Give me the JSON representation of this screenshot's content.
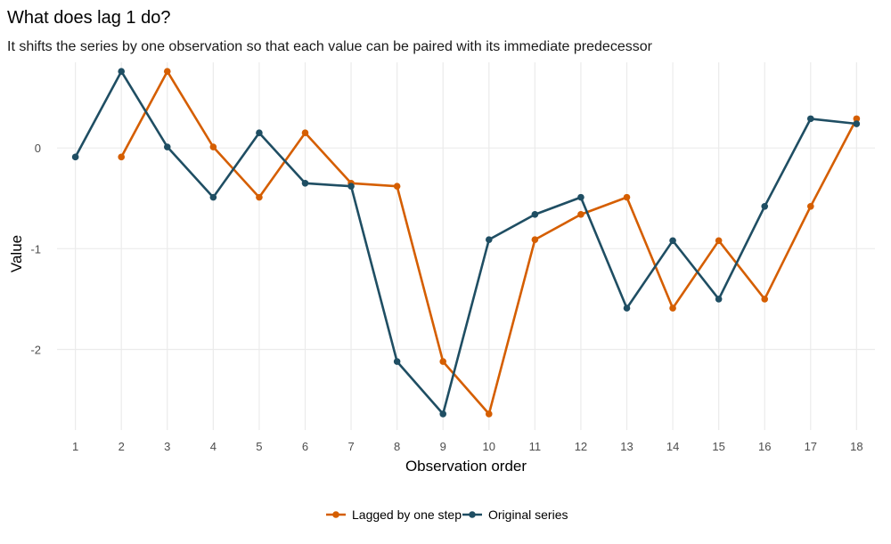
{
  "chart_data": {
    "type": "line",
    "title": "What does lag 1 do?",
    "subtitle": "It shifts the series by one observation so that each value can be paired with its immediate predecessor",
    "xlabel": "Observation order",
    "ylabel": "Value",
    "x": [
      1,
      2,
      3,
      4,
      5,
      6,
      7,
      8,
      9,
      10,
      11,
      12,
      13,
      14,
      15,
      16,
      17,
      18
    ],
    "x_ticks": [
      "1",
      "2",
      "3",
      "4",
      "5",
      "6",
      "7",
      "8",
      "9",
      "10",
      "11",
      "12",
      "13",
      "14",
      "15",
      "16",
      "17",
      "18"
    ],
    "y_ticks": [
      {
        "value": 0,
        "label": "0"
      },
      {
        "value": -1,
        "label": "-1"
      },
      {
        "value": -2,
        "label": "-2"
      }
    ],
    "ylim": [
      -2.8,
      0.85
    ],
    "xlim": [
      0.6,
      18.4
    ],
    "grid": true,
    "legend_position": "bottom",
    "series": [
      {
        "name": "Lagged by one step",
        "color": "#D55E00",
        "values": [
          null,
          -0.09,
          0.76,
          0.01,
          -0.49,
          0.15,
          -0.35,
          -0.38,
          -2.12,
          -2.64,
          -0.91,
          -0.66,
          -0.49,
          -1.59,
          -0.92,
          -1.5,
          -0.58,
          0.29
        ]
      },
      {
        "name": "Original series",
        "color": "#1F4E63",
        "values": [
          -0.09,
          0.76,
          0.01,
          -0.49,
          0.15,
          -0.35,
          -0.38,
          -2.12,
          -2.64,
          -0.91,
          -0.66,
          -0.49,
          -1.59,
          -0.92,
          -1.5,
          -0.58,
          0.29,
          0.24
        ]
      }
    ]
  }
}
